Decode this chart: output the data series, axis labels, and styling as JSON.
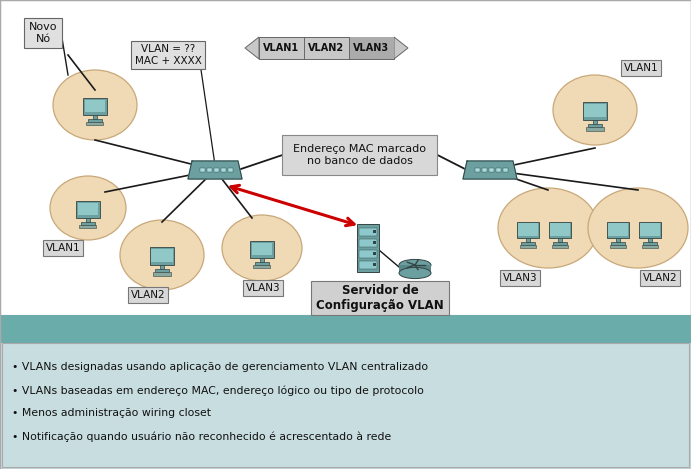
{
  "fig_width": 6.91,
  "fig_height": 4.69,
  "dpi": 100,
  "white_bg": "#ffffff",
  "teal_header": "#6aacaa",
  "light_blue_bg": "#c8dde0",
  "diagram_bg": "#f0f0f0",
  "circle_fill": "#f0d9b5",
  "circle_edge": "#c8a878",
  "switch_color": "#6b9fa0",
  "device_dark": "#4a7f80",
  "device_light": "#8fc8cc",
  "line_color": "#1a1a1a",
  "red_color": "#cc0000",
  "box_fill": "#d8d8d8",
  "box_edge": "#888888",
  "vlan_box_fill": "#d8d8d8",
  "bullet_lines": [
    "• VLANs designadas usando aplicação de gerenciamento VLAN centralizado",
    "• VLANs baseadas em endereço MAC, endereço lógico ou tipo de protocolo",
    "• Menos administração wiring closet",
    "• Notificação quando usuário não reconhecido é acrescentado à rede"
  ],
  "novo_no": "Novo\nNó",
  "vlan_query": "VLAN = ??\nMAC + XXXX",
  "mac_text": "Endereço MAC marcado\nno banco de dados",
  "server_text": "Servidor de\nConfiguração VLAN",
  "vlan_tags": [
    "VLAN1",
    "VLAN2",
    "VLAN3"
  ]
}
